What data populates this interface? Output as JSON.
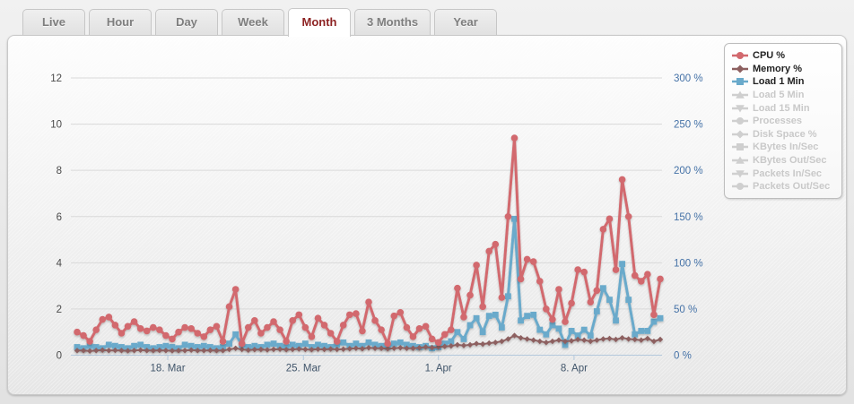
{
  "tabs": {
    "items": [
      {
        "label": "Live",
        "active": false
      },
      {
        "label": "Hour",
        "active": false
      },
      {
        "label": "Day",
        "active": false
      },
      {
        "label": "Week",
        "active": false
      },
      {
        "label": "Month",
        "active": true
      },
      {
        "label": "3 Months",
        "active": false
      },
      {
        "label": "Year",
        "active": false
      }
    ]
  },
  "legend": {
    "items": [
      {
        "label": "CPU %",
        "marker": "circle",
        "color": "#d2696e",
        "enabled": true
      },
      {
        "label": "Memory %",
        "marker": "diamond",
        "color": "#8d6060",
        "enabled": true
      },
      {
        "label": "Load 1 Min",
        "marker": "square",
        "color": "#6aaacb",
        "enabled": true
      },
      {
        "label": "Load 5 Min",
        "marker": "triangle-up",
        "color": "#cfcfcf",
        "enabled": false
      },
      {
        "label": "Load 15 Min",
        "marker": "triangle-down",
        "color": "#cfcfcf",
        "enabled": false
      },
      {
        "label": "Processes",
        "marker": "circle",
        "color": "#cfcfcf",
        "enabled": false
      },
      {
        "label": "Disk Space %",
        "marker": "diamond",
        "color": "#cfcfcf",
        "enabled": false
      },
      {
        "label": "KBytes In/Sec",
        "marker": "square",
        "color": "#cfcfcf",
        "enabled": false
      },
      {
        "label": "KBytes Out/Sec",
        "marker": "triangle-up",
        "color": "#cfcfcf",
        "enabled": false
      },
      {
        "label": "Packets In/Sec",
        "marker": "triangle-down",
        "color": "#cfcfcf",
        "enabled": false
      },
      {
        "label": "Packets Out/Sec",
        "marker": "circle",
        "color": "#cfcfcf",
        "enabled": false
      }
    ]
  },
  "chart_data": {
    "type": "line",
    "y_axis_left": {
      "min": 0,
      "max": 12,
      "ticks": [
        0,
        2,
        4,
        6,
        8,
        10,
        12
      ],
      "text_color": "#4a4a4a"
    },
    "y_axis_right": {
      "labels": [
        "0 %",
        "50 %",
        "100 %",
        "150 %",
        "200 %",
        "250 %",
        "300 %"
      ],
      "text_color": "#4572a7"
    },
    "x_axis": {
      "ticks": [
        {
          "pos": 14.3,
          "label": "18. Mar"
        },
        {
          "pos": 35.7,
          "label": "25. Mar"
        },
        {
          "pos": 57.0,
          "label": "1. Apr"
        },
        {
          "pos": 78.4,
          "label": "8. Apr"
        }
      ],
      "text_color": "#42566b",
      "line_color": "#b3c8dc"
    },
    "grid": {
      "on": true,
      "color": "#d9d9d9"
    },
    "legend_position": "top-right",
    "series": [
      {
        "name": "CPU %",
        "color": "#d2696e",
        "marker": "circle",
        "axis": "left",
        "line_width": 3,
        "values": [
          1.0,
          0.85,
          0.6,
          1.1,
          1.55,
          1.65,
          1.3,
          0.95,
          1.25,
          1.45,
          1.15,
          1.05,
          1.2,
          1.1,
          0.85,
          0.7,
          1.0,
          1.2,
          1.15,
          0.95,
          0.8,
          1.1,
          1.25,
          0.6,
          2.1,
          2.85,
          0.5,
          1.2,
          1.5,
          0.95,
          1.2,
          1.45,
          1.1,
          0.6,
          1.5,
          1.75,
          1.2,
          0.8,
          1.6,
          1.3,
          0.95,
          0.6,
          1.3,
          1.75,
          1.8,
          1.05,
          2.3,
          1.5,
          1.1,
          0.5,
          1.7,
          1.85,
          1.2,
          0.8,
          1.15,
          1.25,
          0.7,
          0.55,
          0.9,
          1.1,
          2.9,
          1.65,
          2.6,
          3.9,
          2.1,
          4.5,
          4.8,
          2.5,
          6.0,
          9.4,
          3.3,
          4.15,
          4.05,
          3.2,
          2.0,
          1.55,
          2.85,
          1.45,
          2.25,
          3.7,
          3.6,
          2.3,
          2.8,
          5.45,
          5.9,
          3.7,
          7.6,
          6.0,
          3.45,
          3.2,
          3.5,
          1.75,
          3.3
        ]
      },
      {
        "name": "Memory %",
        "color": "#8d6060",
        "marker": "diamond",
        "axis": "left",
        "line_width": 2,
        "values": [
          0.2,
          0.2,
          0.18,
          0.2,
          0.22,
          0.2,
          0.21,
          0.2,
          0.19,
          0.2,
          0.22,
          0.2,
          0.2,
          0.21,
          0.2,
          0.19,
          0.2,
          0.2,
          0.22,
          0.2,
          0.2,
          0.21,
          0.2,
          0.2,
          0.25,
          0.3,
          0.25,
          0.22,
          0.24,
          0.25,
          0.23,
          0.25,
          0.26,
          0.24,
          0.25,
          0.27,
          0.25,
          0.24,
          0.26,
          0.25,
          0.27,
          0.25,
          0.26,
          0.28,
          0.3,
          0.28,
          0.32,
          0.3,
          0.3,
          0.28,
          0.3,
          0.32,
          0.3,
          0.3,
          0.32,
          0.35,
          0.33,
          0.35,
          0.38,
          0.4,
          0.45,
          0.42,
          0.45,
          0.5,
          0.48,
          0.52,
          0.55,
          0.6,
          0.7,
          0.85,
          0.75,
          0.7,
          0.65,
          0.6,
          0.55,
          0.6,
          0.65,
          0.6,
          0.62,
          0.68,
          0.65,
          0.6,
          0.65,
          0.7,
          0.72,
          0.68,
          0.75,
          0.7,
          0.68,
          0.65,
          0.72,
          0.6,
          0.68
        ]
      },
      {
        "name": "Load 1 Min",
        "color": "#6aaacb",
        "marker": "square",
        "axis": "right",
        "line_width": 3,
        "values": [
          0.35,
          0.3,
          0.4,
          0.35,
          0.3,
          0.45,
          0.4,
          0.35,
          0.3,
          0.4,
          0.45,
          0.35,
          0.3,
          0.35,
          0.4,
          0.35,
          0.3,
          0.45,
          0.4,
          0.35,
          0.4,
          0.35,
          0.3,
          0.35,
          0.5,
          0.9,
          0.45,
          0.35,
          0.4,
          0.35,
          0.45,
          0.5,
          0.4,
          0.35,
          0.45,
          0.4,
          0.5,
          0.35,
          0.45,
          0.4,
          0.35,
          0.45,
          0.55,
          0.4,
          0.5,
          0.4,
          0.55,
          0.45,
          0.4,
          0.35,
          0.5,
          0.55,
          0.45,
          0.4,
          0.35,
          0.4,
          0.3,
          0.35,
          0.5,
          0.6,
          1.0,
          0.7,
          1.3,
          1.6,
          1.0,
          1.7,
          1.75,
          1.2,
          2.55,
          5.9,
          1.5,
          1.7,
          1.75,
          1.1,
          0.9,
          1.3,
          1.15,
          0.45,
          1.05,
          0.85,
          1.1,
          0.85,
          1.9,
          2.9,
          2.4,
          1.5,
          3.95,
          2.4,
          0.9,
          1.05,
          1.05,
          1.45,
          1.6
        ]
      }
    ],
    "note_right_axis_scale": "right axis % = left-axis units x 25"
  },
  "colors": {
    "active_tab_text": "#8e2424",
    "inactive_tab_text": "#7e7e7e",
    "grid": "#d9d9d9",
    "axis_line": "#b3c8dc",
    "cpu": "#d2696e",
    "memory": "#8d6060",
    "load1": "#6aaacb",
    "disabled": "#cfcfcf"
  }
}
